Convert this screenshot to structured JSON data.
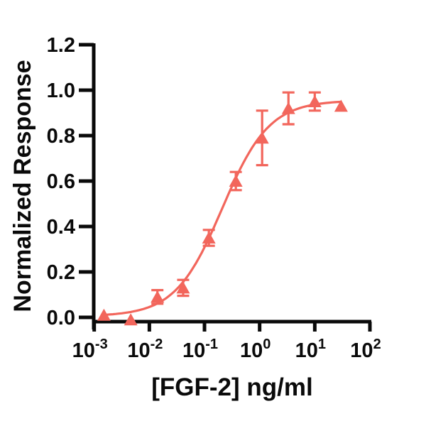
{
  "chart_data": {
    "type": "scatter",
    "title": "",
    "xlabel": "[FGF-2] ng/ml",
    "ylabel": "Normalized Response",
    "x_scale": "log10",
    "xlim_log": [
      -3,
      2
    ],
    "ylim": [
      0,
      1.2
    ],
    "grid": false,
    "legend": "none",
    "x_tick_exponents": [
      -3,
      -2,
      -1,
      0,
      1,
      2
    ],
    "x_tick_base": "10",
    "y_ticks": [
      "0.0",
      "0.2",
      "0.4",
      "0.6",
      "0.8",
      "1.0",
      "1.2"
    ],
    "marker": "filled-triangle-up",
    "marker_color": "#F2665C",
    "axis_color": "#0a0a0a",
    "points": [
      {
        "x": 0.0015,
        "y": 0.01,
        "err": 0
      },
      {
        "x": 0.0046,
        "y": -0.01,
        "err": 0
      },
      {
        "x": 0.014,
        "y": 0.09,
        "err": 0.03
      },
      {
        "x": 0.041,
        "y": 0.13,
        "err": 0.035
      },
      {
        "x": 0.12,
        "y": 0.35,
        "err": 0.035
      },
      {
        "x": 0.37,
        "y": 0.6,
        "err": 0.04
      },
      {
        "x": 1.11,
        "y": 0.79,
        "err": 0.12
      },
      {
        "x": 3.33,
        "y": 0.92,
        "err": 0.07
      },
      {
        "x": 10,
        "y": 0.95,
        "err": 0.04
      },
      {
        "x": 30,
        "y": 0.93,
        "err": 0
      }
    ],
    "fit_curve": {
      "model": "4PL-sigmoid",
      "bottom": 0.005,
      "top": 0.955,
      "ec50": 0.21,
      "hill": 1.02,
      "x_start": 0.0015,
      "x_end": 30
    }
  }
}
